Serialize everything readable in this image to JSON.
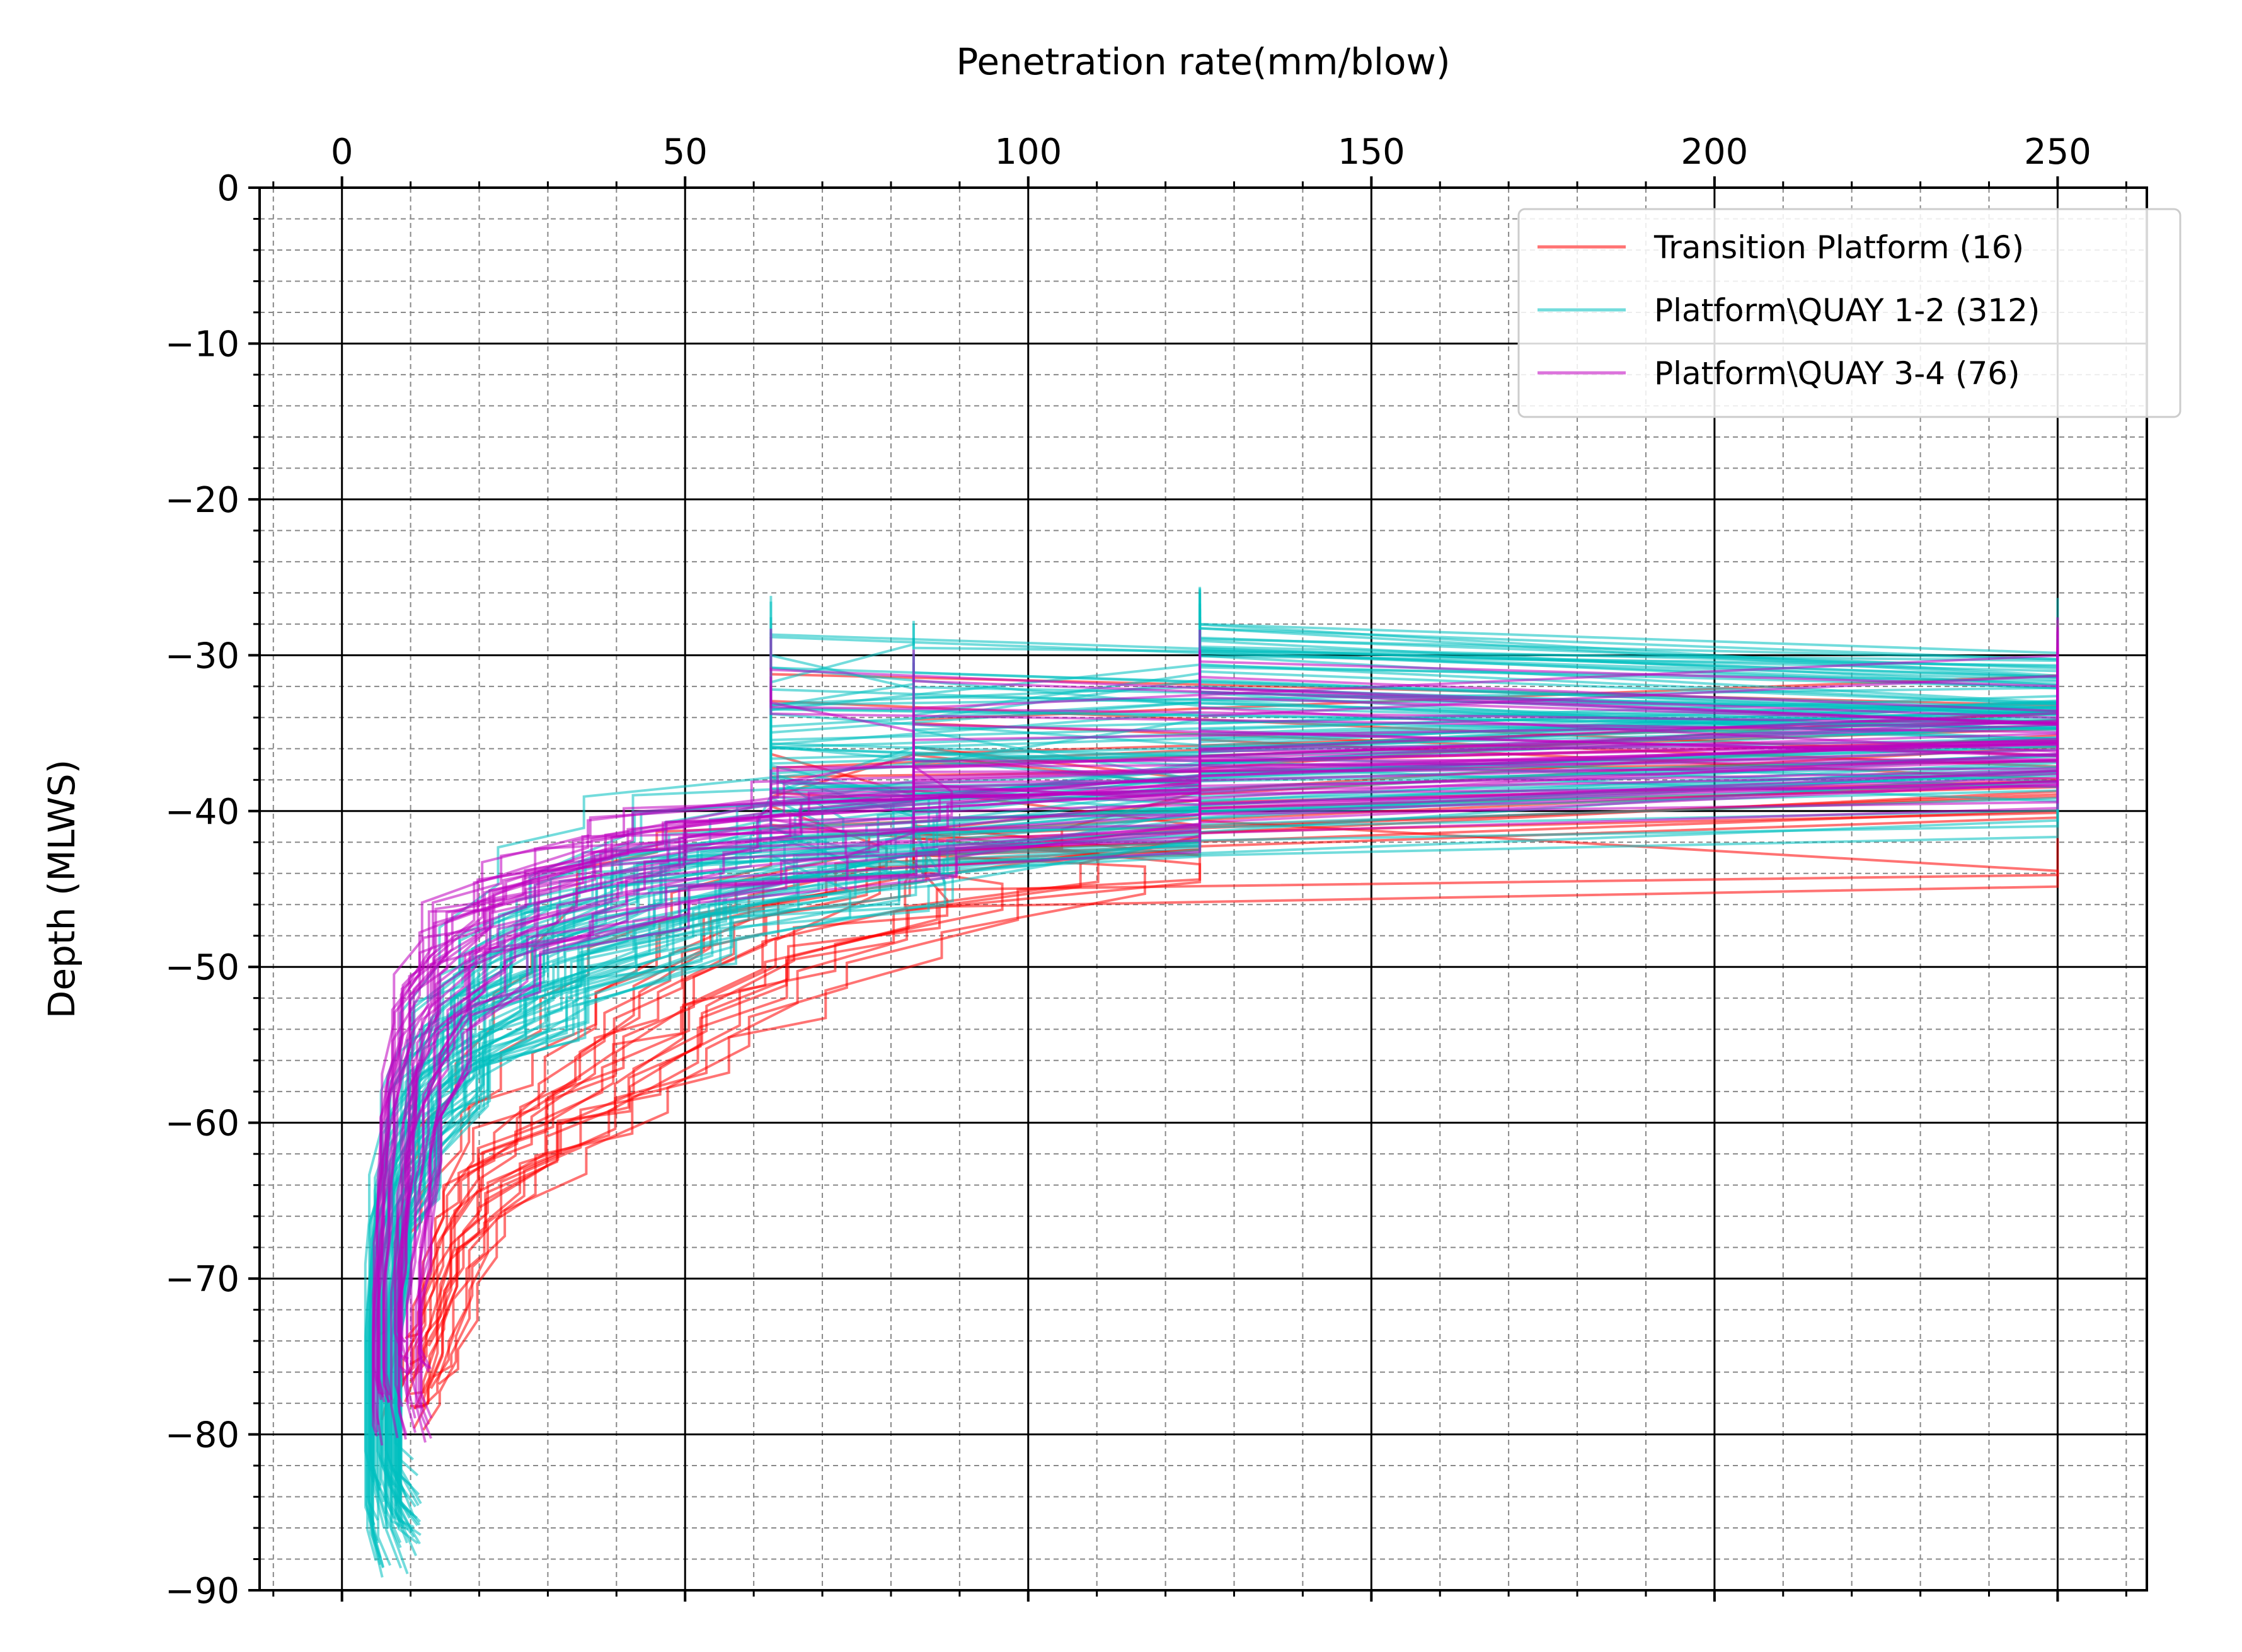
{
  "chart_data": {
    "type": "line",
    "title": "",
    "xlabel": "Penetration rate(mm/blow)",
    "ylabel": "Depth (MLWS)",
    "x_axis_position": "top",
    "xlim": [
      -12,
      263
    ],
    "ylim": [
      -90,
      0
    ],
    "xticks": [
      0,
      50,
      100,
      150,
      200,
      250
    ],
    "xtick_labels": [
      "0",
      "50",
      "100",
      "150",
      "200",
      "250"
    ],
    "yticks": [
      0,
      -10,
      -20,
      -30,
      -40,
      -50,
      -60,
      -70,
      -80,
      -90
    ],
    "ytick_labels": [
      "0",
      "−10",
      "−20",
      "−30",
      "−40",
      "−50",
      "−60",
      "−70",
      "−80",
      "−90"
    ],
    "grid": {
      "major": true,
      "minor": true,
      "minor_style": "dashed"
    },
    "legend_position": "top-right",
    "series": [
      {
        "name": "Transition Platform (16)",
        "color": "#ff0000",
        "alpha": 0.55,
        "line_count": 16,
        "representative_profile": [
          {
            "depth": -30.5,
            "rate": 250
          },
          {
            "depth": -36,
            "rate": 250
          },
          {
            "depth": -40,
            "rate": 125
          },
          {
            "depth": -43,
            "rate": 83
          },
          {
            "depth": -46,
            "rate": 62
          },
          {
            "depth": -50,
            "rate": 50
          },
          {
            "depth": -54,
            "rate": 40
          },
          {
            "depth": -58,
            "rate": 30
          },
          {
            "depth": -62,
            "rate": 20
          },
          {
            "depth": -66,
            "rate": 16
          },
          {
            "depth": -70,
            "rate": 14
          },
          {
            "depth": -74,
            "rate": 12
          },
          {
            "depth": -76,
            "rate": 10
          }
        ]
      },
      {
        "name": "Platform\\QUAY 1-2 (312)",
        "color": "#00bfbf",
        "alpha": 0.55,
        "line_count": 312,
        "representative_profile": [
          {
            "depth": -29,
            "rate": 125
          },
          {
            "depth": -33,
            "rate": 250
          },
          {
            "depth": -38,
            "rate": 125
          },
          {
            "depth": -42,
            "rate": 62
          },
          {
            "depth": -46,
            "rate": 40
          },
          {
            "depth": -50,
            "rate": 25
          },
          {
            "depth": -55,
            "rate": 15
          },
          {
            "depth": -60,
            "rate": 10
          },
          {
            "depth": -66,
            "rate": 7
          },
          {
            "depth": -72,
            "rate": 6
          },
          {
            "depth": -78,
            "rate": 6
          },
          {
            "depth": -82,
            "rate": 6
          },
          {
            "depth": -85.5,
            "rate": 8
          }
        ]
      },
      {
        "name": "Platform\\QUAY 3-4 (76)",
        "color": "#bf00bf",
        "alpha": 0.55,
        "line_count": 76,
        "representative_profile": [
          {
            "depth": -30.5,
            "rate": 250
          },
          {
            "depth": -35,
            "rate": 250
          },
          {
            "depth": -38,
            "rate": 125
          },
          {
            "depth": -41,
            "rate": 62
          },
          {
            "depth": -44,
            "rate": 35
          },
          {
            "depth": -47,
            "rate": 20
          },
          {
            "depth": -52,
            "rate": 13
          },
          {
            "depth": -58,
            "rate": 10
          },
          {
            "depth": -64,
            "rate": 9
          },
          {
            "depth": -70,
            "rate": 8
          },
          {
            "depth": -75,
            "rate": 8
          },
          {
            "depth": -78,
            "rate": 9
          }
        ]
      }
    ]
  }
}
